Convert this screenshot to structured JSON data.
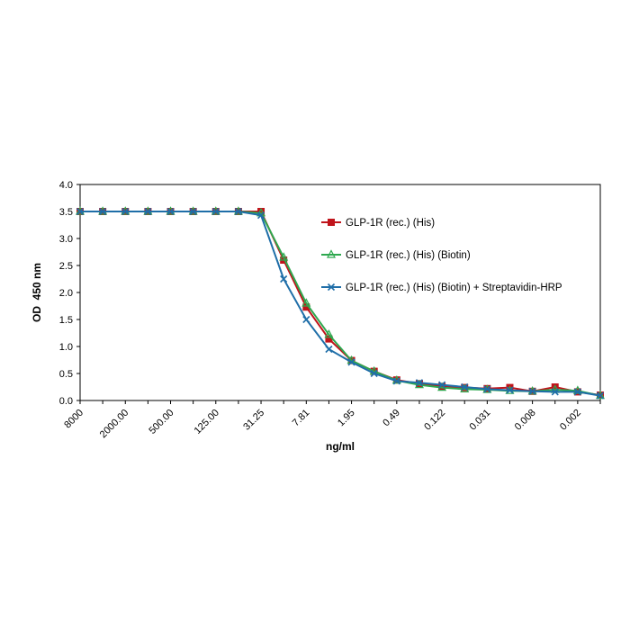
{
  "chart_data": {
    "type": "line",
    "title": "",
    "xlabel": "ng/ml",
    "ylabel": "OD  450 nm",
    "ylim": [
      0,
      4.0
    ],
    "yticks": [
      "0.0",
      "0.5",
      "1.0",
      "1.5",
      "2.0",
      "2.5",
      "3.0",
      "3.5",
      "4.0"
    ],
    "ytick_values": [
      0,
      0.5,
      1.0,
      1.5,
      2.0,
      2.5,
      3.0,
      3.5,
      4.0
    ],
    "x_tick_labels": [
      {
        "index": 0,
        "label": "8000"
      },
      {
        "index": 2,
        "label": "2000.00"
      },
      {
        "index": 4,
        "label": "500.00"
      },
      {
        "index": 6,
        "label": "125.00"
      },
      {
        "index": 8,
        "label": "31.25"
      },
      {
        "index": 10,
        "label": "7.81"
      },
      {
        "index": 12,
        "label": "1.95"
      },
      {
        "index": 14,
        "label": "0.49"
      },
      {
        "index": 16,
        "label": "0.122"
      },
      {
        "index": 18,
        "label": "0.031"
      },
      {
        "index": 20,
        "label": "0.008"
      },
      {
        "index": 22,
        "label": "0.002"
      }
    ],
    "x_count": 24,
    "grid": false,
    "legend_position": "right",
    "series": [
      {
        "name": "GLP-1R (rec.) (His)",
        "color": "#c0141b",
        "marker": "square",
        "values": [
          3.5,
          3.5,
          3.5,
          3.5,
          3.5,
          3.5,
          3.5,
          3.5,
          3.5,
          2.6,
          1.73,
          1.14,
          0.74,
          0.54,
          0.38,
          0.31,
          0.26,
          0.24,
          0.22,
          0.24,
          0.17,
          0.25,
          0.16,
          0.1
        ]
      },
      {
        "name": "GLP-1R (rec.) (His) (Biotin)",
        "color": "#2ea84f",
        "marker": "triangle",
        "values": [
          3.5,
          3.5,
          3.5,
          3.5,
          3.5,
          3.5,
          3.5,
          3.5,
          3.47,
          2.65,
          1.8,
          1.22,
          0.74,
          0.54,
          0.37,
          0.29,
          0.24,
          0.21,
          0.2,
          0.18,
          0.17,
          0.2,
          0.18,
          0.09
        ]
      },
      {
        "name": "GLP-1R (rec.) (His) (Biotin) + Streptavidin-HRP",
        "color": "#1f6ea8",
        "marker": "x",
        "values": [
          3.5,
          3.5,
          3.5,
          3.5,
          3.5,
          3.5,
          3.5,
          3.5,
          3.43,
          2.25,
          1.5,
          0.95,
          0.71,
          0.5,
          0.36,
          0.33,
          0.29,
          0.25,
          0.21,
          0.19,
          0.17,
          0.16,
          0.16,
          0.09
        ]
      }
    ]
  }
}
